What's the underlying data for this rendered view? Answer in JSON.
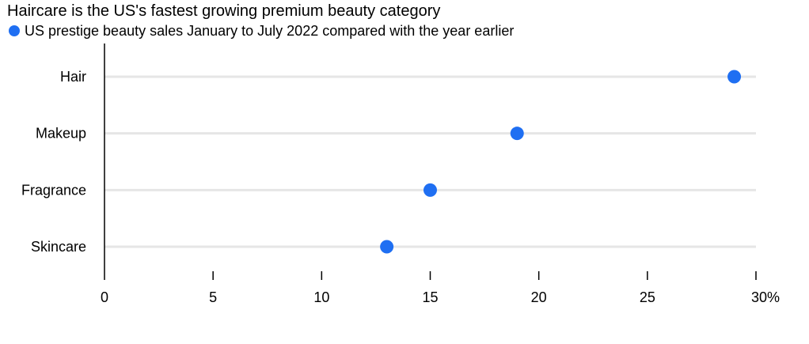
{
  "chart_data": {
    "type": "dot",
    "title": "Haircare is the US's fastest growing premium beauty category",
    "legend": {
      "label": "US prestige beauty sales January to July 2022 compared with the year earlier",
      "placement": "top-left"
    },
    "categories": [
      "Hair",
      "Makeup",
      "Fragrance",
      "Skincare"
    ],
    "series": [
      {
        "name": "US prestige beauty sales January to July 2022 compared with the year earlier",
        "values": [
          29,
          19,
          15,
          13
        ],
        "color": "#1f6ff2"
      }
    ],
    "xlim": [
      0,
      30
    ],
    "x_ticks": [
      0,
      5,
      10,
      15,
      20,
      25,
      30
    ],
    "x_tick_labels": [
      "0",
      "5",
      "10",
      "15",
      "20",
      "25",
      "30%"
    ],
    "xlabel": "",
    "ylabel": "",
    "grid": false,
    "colors": {
      "dot": "#1f6ff2",
      "guide_line": "#e6e6e6",
      "axis": "#000000"
    }
  }
}
